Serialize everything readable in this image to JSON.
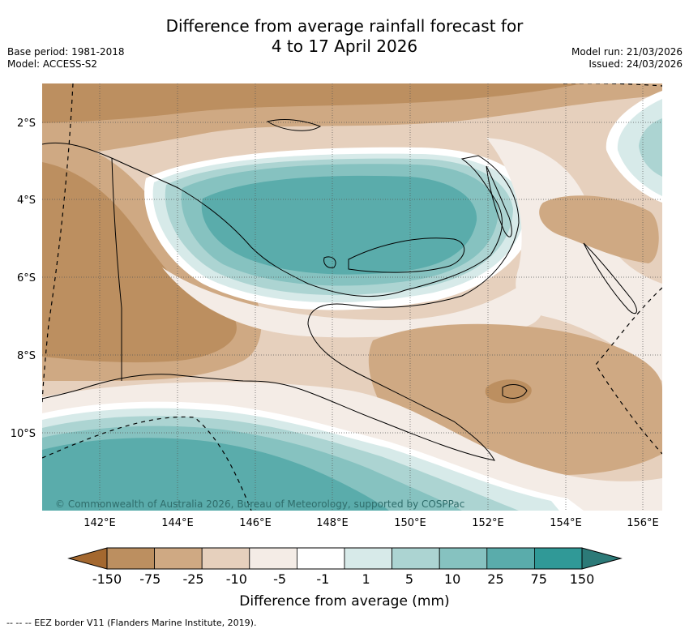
{
  "title": {
    "line1": "Difference from average rainfall forecast for",
    "line2": "4 to 17 April 2026"
  },
  "meta_left": {
    "base_period": "Base period: 1981-2018",
    "model": "Model: ACCESS-S2"
  },
  "meta_right": {
    "model_run": "Model run: 21/03/2026",
    "issued": "Issued: 24/03/2026"
  },
  "map": {
    "lat_labels": [
      "2°S",
      "4°S",
      "6°S",
      "8°S",
      "10°S"
    ],
    "lon_labels": [
      "142°E",
      "144°E",
      "146°E",
      "148°E",
      "150°E",
      "152°E",
      "154°E",
      "156°E"
    ],
    "copyright": "© Commonwealth of Australia 2026, Bureau of Meteorology, supported by COSPPac"
  },
  "legend": {
    "ticks": [
      "-150",
      "-75",
      "-25",
      "-10",
      "-5",
      "-1",
      "1",
      "5",
      "10",
      "25",
      "75",
      "150"
    ],
    "colors": [
      "#a4682f",
      "#bc8f60",
      "#cfa983",
      "#e6d0bd",
      "#f4ece6",
      "#ffffff",
      "#d7eae9",
      "#acd4d2",
      "#86c2c0",
      "#5aacab",
      "#309997",
      "#2c7a78"
    ],
    "title": "Difference from average (mm)"
  },
  "footer": "--  --  -- EEZ border V11 (Flanders Marine Institute, 2019)."
}
